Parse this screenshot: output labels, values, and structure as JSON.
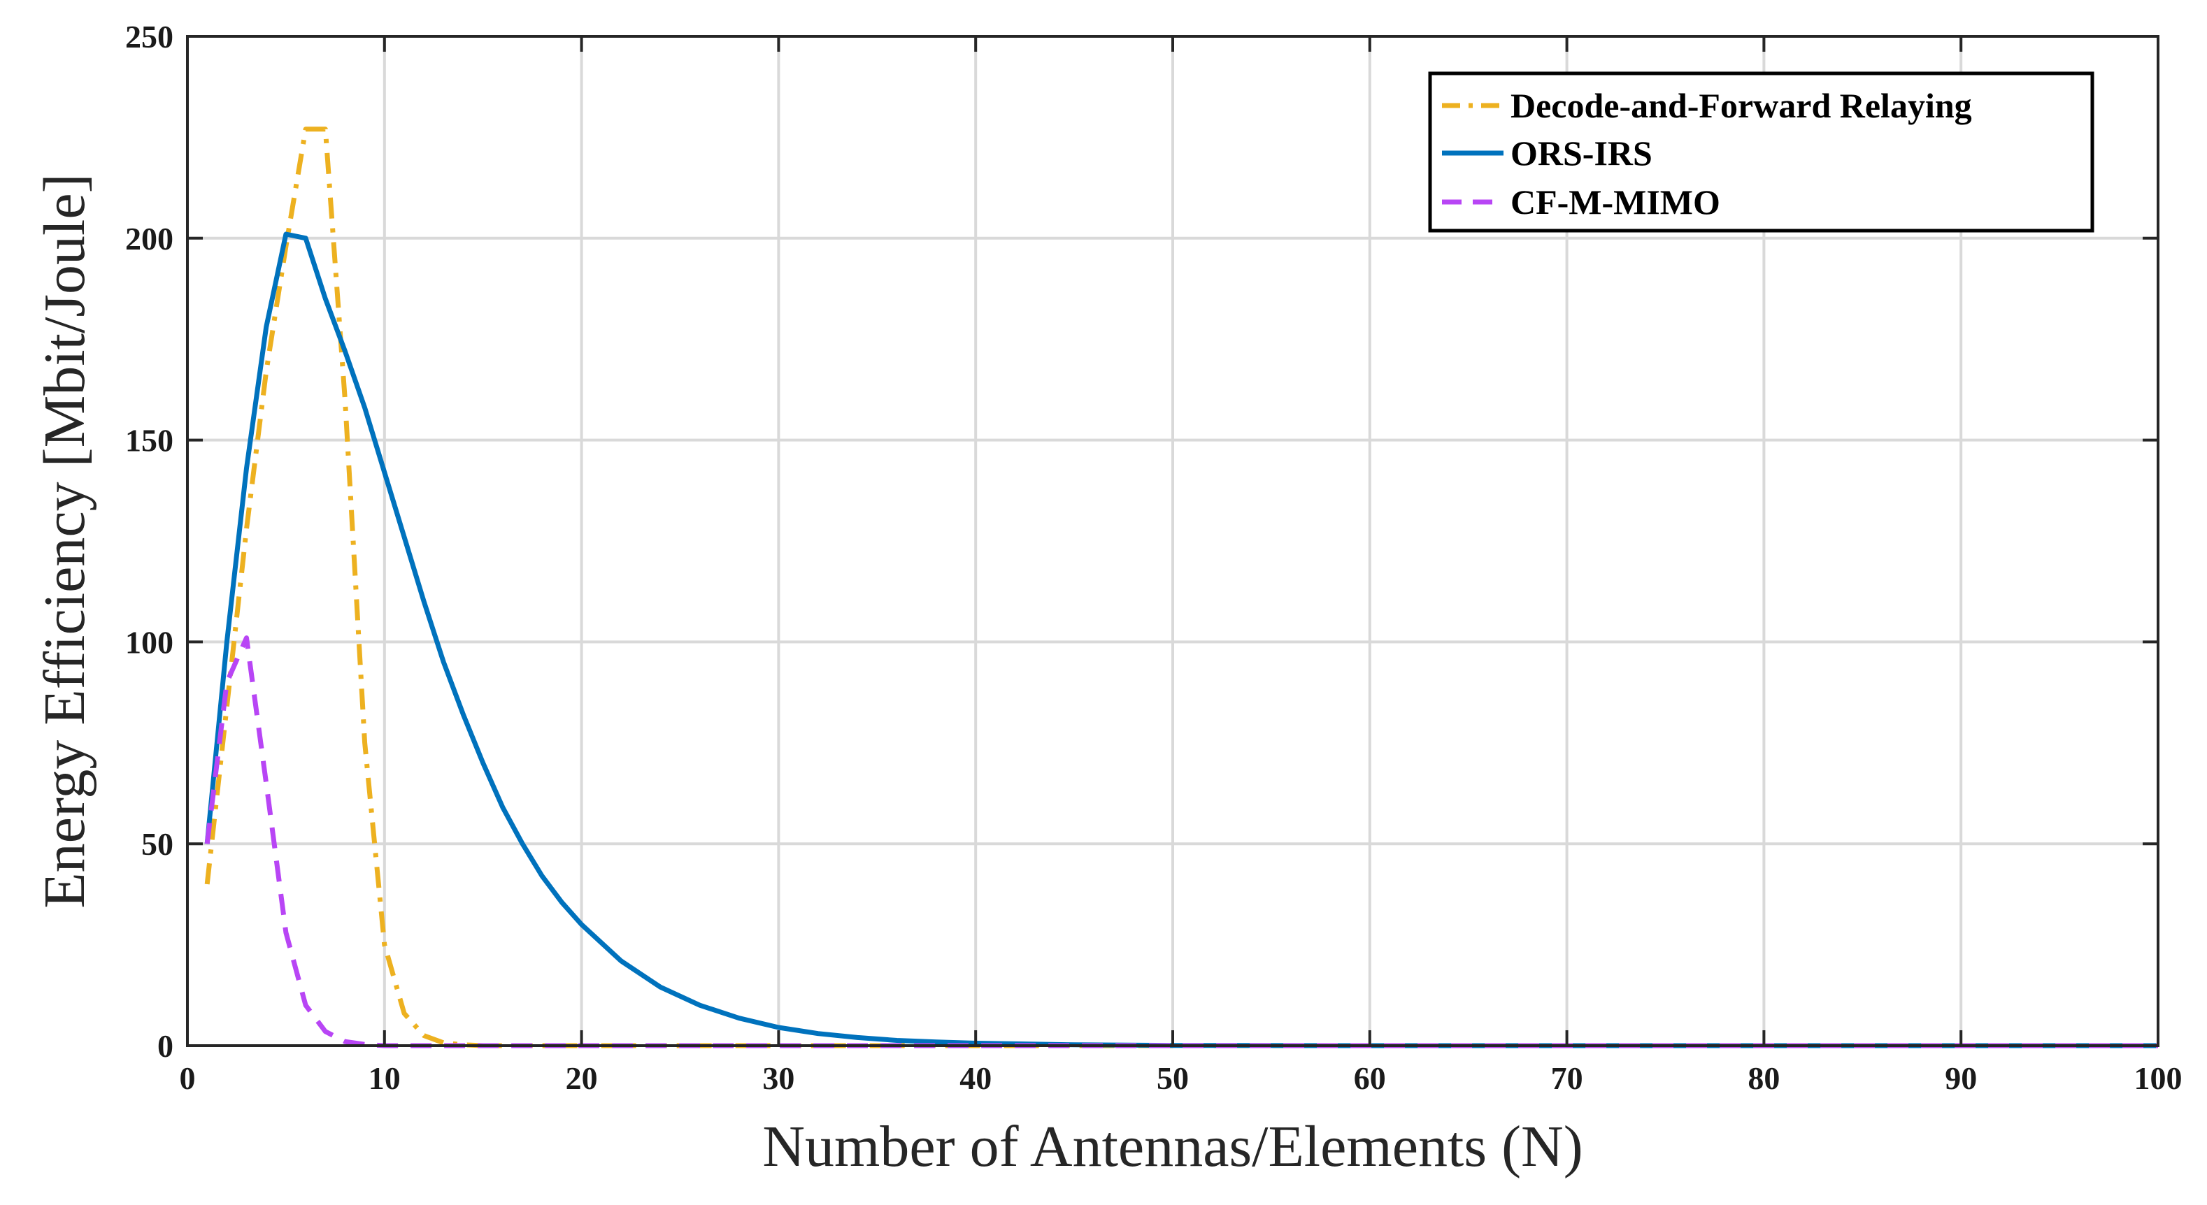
{
  "chart_data": {
    "type": "line",
    "title": "",
    "xlabel": "Number of Antennas/Elements (N)",
    "ylabel": "Energy Efficiency [Mbit/Joule]",
    "xlim": [
      0,
      100
    ],
    "ylim": [
      0,
      250
    ],
    "xticks": [
      0,
      10,
      20,
      30,
      40,
      50,
      60,
      70,
      80,
      90,
      100
    ],
    "yticks": [
      0,
      50,
      100,
      150,
      200,
      250
    ],
    "grid": true,
    "legend_position": "top-right",
    "series": [
      {
        "name": "Decode-and-Forward Relaying",
        "color": "#EDB120",
        "style": "dash-dot",
        "x": [
          1,
          2,
          3,
          4,
          5,
          6,
          7,
          8,
          9,
          10,
          11,
          12,
          13,
          14,
          15,
          20,
          30,
          40,
          50,
          60,
          70,
          80,
          90,
          100
        ],
        "y": [
          40,
          84,
          128,
          167,
          198,
          227,
          227,
          160,
          75,
          25,
          8,
          2.5,
          0.7,
          0.2,
          0,
          0,
          0,
          0,
          0,
          0,
          0,
          0,
          0,
          0
        ]
      },
      {
        "name": "ORS-IRS",
        "color": "#0072BD",
        "style": "solid",
        "x": [
          1,
          2,
          3,
          4,
          5,
          6,
          7,
          8,
          9,
          10,
          11,
          12,
          13,
          14,
          15,
          16,
          17,
          18,
          19,
          20,
          22,
          24,
          26,
          28,
          30,
          32,
          34,
          36,
          38,
          40,
          45,
          50,
          60,
          70,
          80,
          90,
          100
        ],
        "y": [
          50,
          100,
          143,
          178,
          201,
          200,
          185,
          172,
          158,
          142,
          126,
          110,
          95,
          82,
          70,
          59,
          50,
          42,
          35.5,
          30,
          21,
          14.5,
          10,
          6.8,
          4.5,
          3,
          2,
          1.3,
          0.9,
          0.6,
          0.2,
          0.05,
          0,
          0,
          0,
          0,
          0
        ]
      },
      {
        "name": "CF-M-MIMO",
        "color": "#B845F5",
        "style": "dashed",
        "x": [
          1,
          2,
          3,
          4,
          5,
          6,
          7,
          8,
          9,
          10,
          15,
          20,
          30,
          40,
          50,
          60,
          70,
          80,
          90,
          100
        ],
        "y": [
          50,
          90,
          101,
          65,
          28,
          10,
          3.5,
          1,
          0.3,
          0,
          0,
          0,
          0,
          0,
          0,
          0,
          0,
          0,
          0,
          0
        ]
      }
    ]
  }
}
